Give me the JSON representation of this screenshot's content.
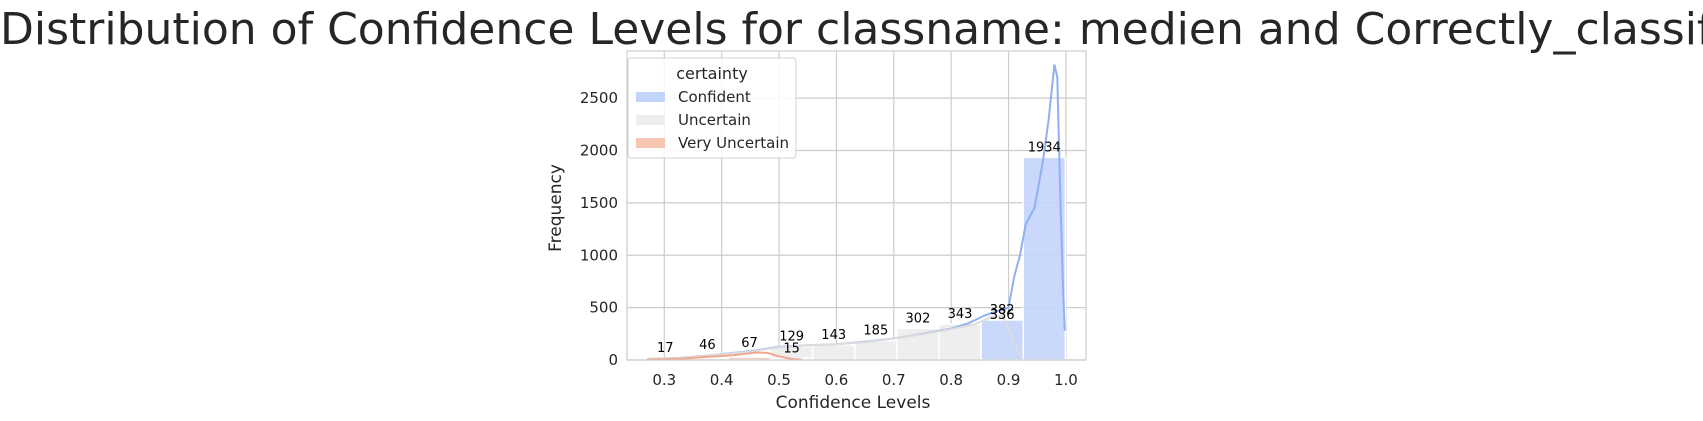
{
  "chart_data": {
    "type": "bar",
    "title": "Distribution of Confidence Levels for classname: medien and Correctly_classified",
    "xlabel": "Confidence Levels",
    "ylabel": "Frequency",
    "xlim": [
      0.235,
      1.035
    ],
    "ylim": [
      0,
      2950
    ],
    "xticks": [
      0.3,
      0.4,
      0.5,
      0.6,
      0.7,
      0.8,
      0.9,
      1.0
    ],
    "xtick_labels": [
      "0.3",
      "0.4",
      "0.5",
      "0.6",
      "0.7",
      "0.8",
      "0.9",
      "1.0"
    ],
    "yticks": [
      0,
      500,
      1000,
      1500,
      2000,
      2500
    ],
    "ytick_labels": [
      "0",
      "500",
      "1000",
      "1500",
      "2000",
      "2500"
    ],
    "grid": true,
    "legend": {
      "title": "certainty",
      "position": "upper-left",
      "entries": [
        "Confident",
        "Uncertain",
        "Very Uncertain"
      ]
    },
    "colors": {
      "Confident": "#c3d4fb",
      "Uncertain": "#eeeeee",
      "Very Uncertain": "#f7c6b3",
      "Confident_kde": "#8fb0f2",
      "Uncertain_kde": "#dcdcdc",
      "Very Uncertain_kde": "#f0a98f"
    },
    "bin_edges": [
      0.265,
      0.3384,
      0.4118,
      0.4852,
      0.5586,
      0.632,
      0.7054,
      0.7788,
      0.8522,
      0.9256,
      0.999
    ],
    "series": [
      {
        "name": "Confident",
        "values": [
          0,
          0,
          0,
          0,
          0,
          0,
          0,
          0,
          382,
          1934
        ]
      },
      {
        "name": "Uncertain",
        "values": [
          11,
          30,
          40,
          129,
          143,
          185,
          302,
          343,
          336,
          0
        ]
      },
      {
        "name": "Very Uncertain",
        "values": [
          6,
          16,
          27,
          15,
          0,
          0,
          0,
          0,
          0,
          0
        ]
      }
    ],
    "bar_labels": [
      {
        "x": 0.3017,
        "y": 17,
        "text": "17"
      },
      {
        "x": 0.3751,
        "y": 46,
        "text": "46"
      },
      {
        "x": 0.4485,
        "y": 67,
        "text": "67"
      },
      {
        "x": 0.5219,
        "y": 129,
        "text": "129"
      },
      {
        "x": 0.5219,
        "y": 15,
        "text": "15"
      },
      {
        "x": 0.5953,
        "y": 143,
        "text": "143"
      },
      {
        "x": 0.6687,
        "y": 185,
        "text": "185"
      },
      {
        "x": 0.7421,
        "y": 302,
        "text": "302"
      },
      {
        "x": 0.8155,
        "y": 343,
        "text": "343"
      },
      {
        "x": 0.8889,
        "y": 382,
        "text": "382"
      },
      {
        "x": 0.8889,
        "y": 336,
        "text": "336"
      },
      {
        "x": 0.9623,
        "y": 1934,
        "text": "1934"
      }
    ],
    "kde": [
      {
        "name": "Confident",
        "points": [
          [
            0.27,
            10
          ],
          [
            0.32,
            18
          ],
          [
            0.38,
            45
          ],
          [
            0.45,
            85
          ],
          [
            0.5,
            125
          ],
          [
            0.55,
            140
          ],
          [
            0.6,
            150
          ],
          [
            0.65,
            175
          ],
          [
            0.7,
            205
          ],
          [
            0.75,
            250
          ],
          [
            0.8,
            300
          ],
          [
            0.83,
            350
          ],
          [
            0.86,
            430
          ],
          [
            0.88,
            465
          ],
          [
            0.9,
            500
          ],
          [
            0.91,
            800
          ],
          [
            0.92,
            1000
          ],
          [
            0.93,
            1300
          ],
          [
            0.945,
            1450
          ],
          [
            0.96,
            1900
          ],
          [
            0.97,
            2300
          ],
          [
            0.98,
            2820
          ],
          [
            0.985,
            2700
          ],
          [
            0.99,
            1600
          ],
          [
            0.995,
            700
          ],
          [
            0.998,
            280
          ]
        ]
      },
      {
        "name": "Uncertain",
        "points": [
          [
            0.27,
            10
          ],
          [
            0.32,
            18
          ],
          [
            0.38,
            45
          ],
          [
            0.45,
            80
          ],
          [
            0.5,
            120
          ],
          [
            0.55,
            140
          ],
          [
            0.6,
            150
          ],
          [
            0.65,
            170
          ],
          [
            0.7,
            205
          ],
          [
            0.75,
            245
          ],
          [
            0.8,
            295
          ],
          [
            0.84,
            340
          ],
          [
            0.87,
            410
          ],
          [
            0.89,
            420
          ],
          [
            0.9,
            300
          ],
          [
            0.91,
            160
          ],
          [
            0.92,
            40
          ]
        ]
      },
      {
        "name": "Very Uncertain",
        "points": [
          [
            0.27,
            5
          ],
          [
            0.33,
            12
          ],
          [
            0.38,
            32
          ],
          [
            0.42,
            45
          ],
          [
            0.46,
            72
          ],
          [
            0.48,
            68
          ],
          [
            0.5,
            35
          ],
          [
            0.52,
            12
          ],
          [
            0.54,
            4
          ]
        ]
      }
    ]
  }
}
